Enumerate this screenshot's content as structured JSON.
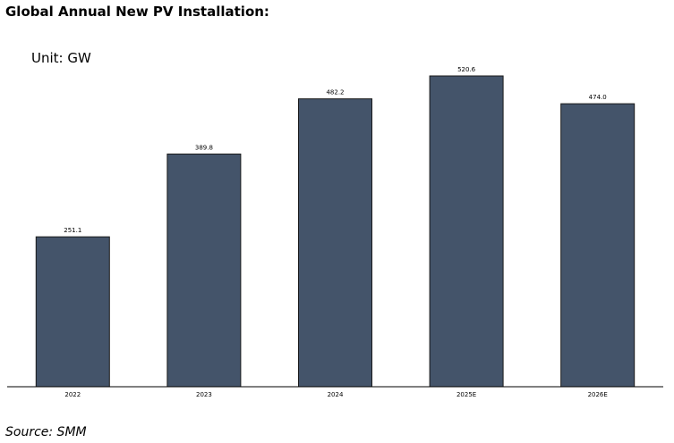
{
  "title": "Global Annual New PV Installation:",
  "unit_label": "Unit: GW",
  "source": "Source: SMM",
  "colors": {
    "bar": "#44546a",
    "bar_edge": "#1a1a1a",
    "axis": "#000000"
  },
  "chart_data": {
    "type": "bar",
    "title": "Global Annual New PV Installation:",
    "xlabel": "",
    "ylabel": "Unit: GW",
    "categories": [
      "2022",
      "2023",
      "2024",
      "2025E",
      "2026E"
    ],
    "values": [
      251.1,
      389.8,
      482.2,
      520.6,
      474.0
    ],
    "data_labels": [
      "251.1",
      "389.8",
      "482.2",
      "520.6",
      "474.0"
    ],
    "ylim": [
      0,
      520.6
    ],
    "grid": false,
    "legend": "none"
  }
}
